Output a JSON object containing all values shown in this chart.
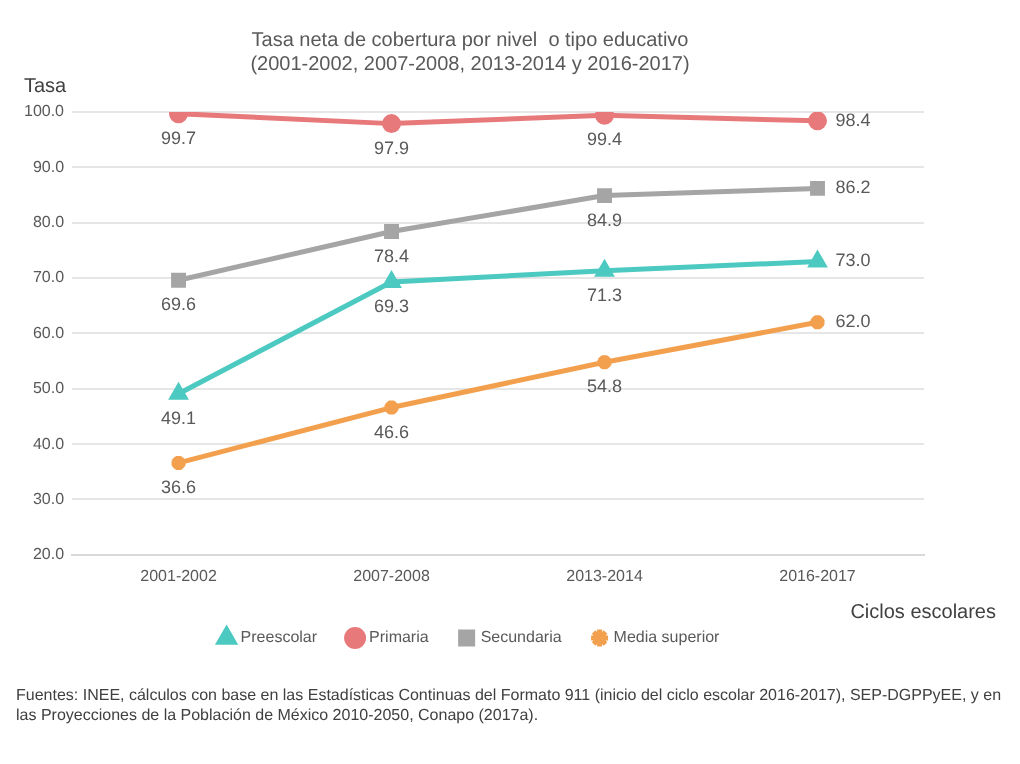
{
  "chart_data": {
    "type": "line",
    "title": "Tasa neta de cobertura por nivel  o tipo educativo",
    "subtitle": "(2001-2002, 2007-2008, 2013-2014 y 2016-2017)",
    "ylabel": "Tasa",
    "xlabel": "Ciclos escolares",
    "categories": [
      "2001-2002",
      "2007-2008",
      "2013-2014",
      "2016-2017"
    ],
    "series": [
      {
        "name": "Preescolar",
        "color": "#4cc9c0",
        "marker": "triangle",
        "values": [
          49.1,
          69.3,
          71.3,
          73.0
        ],
        "value_labels": [
          "49.1",
          "69.3",
          "71.3",
          "73.0"
        ]
      },
      {
        "name": "Primaria",
        "color": "#e8797b",
        "marker": "circle",
        "values": [
          99.7,
          97.9,
          99.4,
          98.4
        ],
        "value_labels": [
          "99.7",
          "97.9",
          "99.4",
          "98.4"
        ]
      },
      {
        "name": "Secundaria",
        "color": "#a5a5a5",
        "marker": "square",
        "values": [
          69.6,
          78.4,
          84.9,
          86.2
        ],
        "value_labels": [
          "69.6",
          "78.4",
          "84.9",
          "86.2"
        ]
      },
      {
        "name": "Media superior",
        "color": "#f2a04e",
        "marker": "cross",
        "values": [
          36.6,
          46.6,
          54.8,
          62.0
        ],
        "value_labels": [
          "36.6",
          "46.6",
          "54.8",
          "62.0"
        ]
      }
    ],
    "ylim": [
      20,
      100
    ],
    "yticks": [
      {
        "value": 20,
        "label": "20.0"
      },
      {
        "value": 30,
        "label": "30.0"
      },
      {
        "value": 40,
        "label": "40.0"
      },
      {
        "value": 50,
        "label": "50.0"
      },
      {
        "value": 60,
        "label": "60.0"
      },
      {
        "value": 70,
        "label": "70.0"
      },
      {
        "value": 80,
        "label": "80.0"
      },
      {
        "value": 90,
        "label": "90.0"
      },
      {
        "value": 100,
        "label": "100.0"
      }
    ],
    "grid": "y",
    "legend": "bottom",
    "line_style": "solid",
    "annotations": [
      "Fuentes: INEE, cálculos con base en las Estadísticas Continuas del Formato 911 (inicio del ciclo escolar 2016-2017), SEP-DGPPyEE, y en las Proyecciones de la Población de México 2010-2050, Conapo (2017a)."
    ]
  }
}
